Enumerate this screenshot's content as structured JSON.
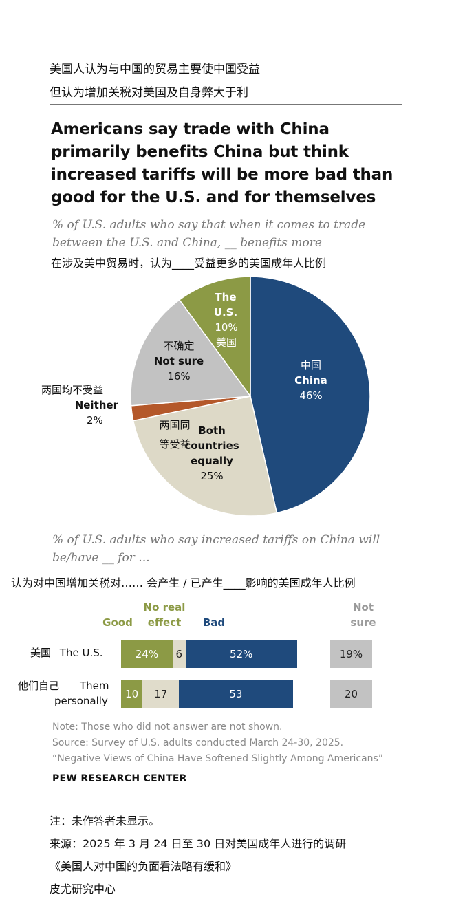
{
  "header": {
    "zh_line1": "美国人认为与中国的贸易主要使中国受益",
    "zh_line2": "但认为增加关税对美国及自身弊大于利"
  },
  "title_en": [
    "Americans say trade with China",
    "primarily benefits China but think",
    "increased tariffs will be more bad than",
    "good for the U.S. and for themselves"
  ],
  "pie_subtitle_en": [
    "% of U.S. adults who say that when it comes to trade",
    "between the U.S. and China, __ benefits more"
  ],
  "pie_subtitle_zh": "在涉及美中贸易时，认为____受益更多的美国成年人比例",
  "bar_subtitle_en": [
    "% of U.S. adults who say increased tariffs on China will",
    "be/have __ for ..."
  ],
  "bar_subtitle_zh": "认为对中国增加关税对…… 会产生 / 已产生____影响的美国成年人比例",
  "colors": {
    "china": "#1f4a7c",
    "us": "#8c9a45",
    "not_sure": "#c2c2c2",
    "neither": "#b4582a",
    "both": "#ddd9c7",
    "bar_neutral": "#e0dccb"
  },
  "chart_data": [
    {
      "type": "pie",
      "slices": [
        {
          "key": "china",
          "zh": "中国",
          "en": "China",
          "value": 46,
          "display": "46%"
        },
        {
          "key": "both",
          "zh": "两国同等受益",
          "en": "Both countries equally",
          "value": 25,
          "display": "25%"
        },
        {
          "key": "neither",
          "zh": "两国均不受益",
          "en": "Neither",
          "value": 2,
          "display": "2%"
        },
        {
          "key": "not_sure",
          "zh": "不确定",
          "en": "Not sure",
          "value": 16,
          "display": "16%"
        },
        {
          "key": "us",
          "zh": "美国",
          "en": "The U.S.",
          "value": 10,
          "display": "10%"
        }
      ]
    },
    {
      "type": "bar",
      "stacked": true,
      "columns": {
        "good": "Good",
        "no_effect": "No real effect",
        "bad": "Bad",
        "not_sure": "Not sure"
      },
      "rows": [
        {
          "zh": "美国",
          "en": "The U.S.",
          "good": 24,
          "no_effect": 6,
          "bad": 52,
          "not_sure": 19,
          "labels": {
            "good": "24%",
            "no_effect": "6",
            "bad": "52%",
            "not_sure": "19%"
          }
        },
        {
          "zh": "他们自己",
          "en": "Them personally",
          "good": 10,
          "no_effect": 17,
          "bad": 53,
          "not_sure": 20,
          "labels": {
            "good": "10",
            "no_effect": "17",
            "bad": "53",
            "not_sure": "20"
          }
        }
      ]
    }
  ],
  "notes": {
    "note": "Note: Those who did not answer are not shown.",
    "source": "Source: Survey of U.S. adults conducted March 24-30, 2025.",
    "report": "“Negative Views of China Have Softened Slightly Among Americans”",
    "org": "PEW RESEARCH CENTER"
  },
  "footer_zh": {
    "note": "注：未作答者未显示。",
    "source": "来源：2025 年 3 月 24 日至 30 日对美国成年人进行的调研",
    "report": "《美国人对中国的负面看法略有缓和》",
    "org": "皮尤研究中心"
  }
}
